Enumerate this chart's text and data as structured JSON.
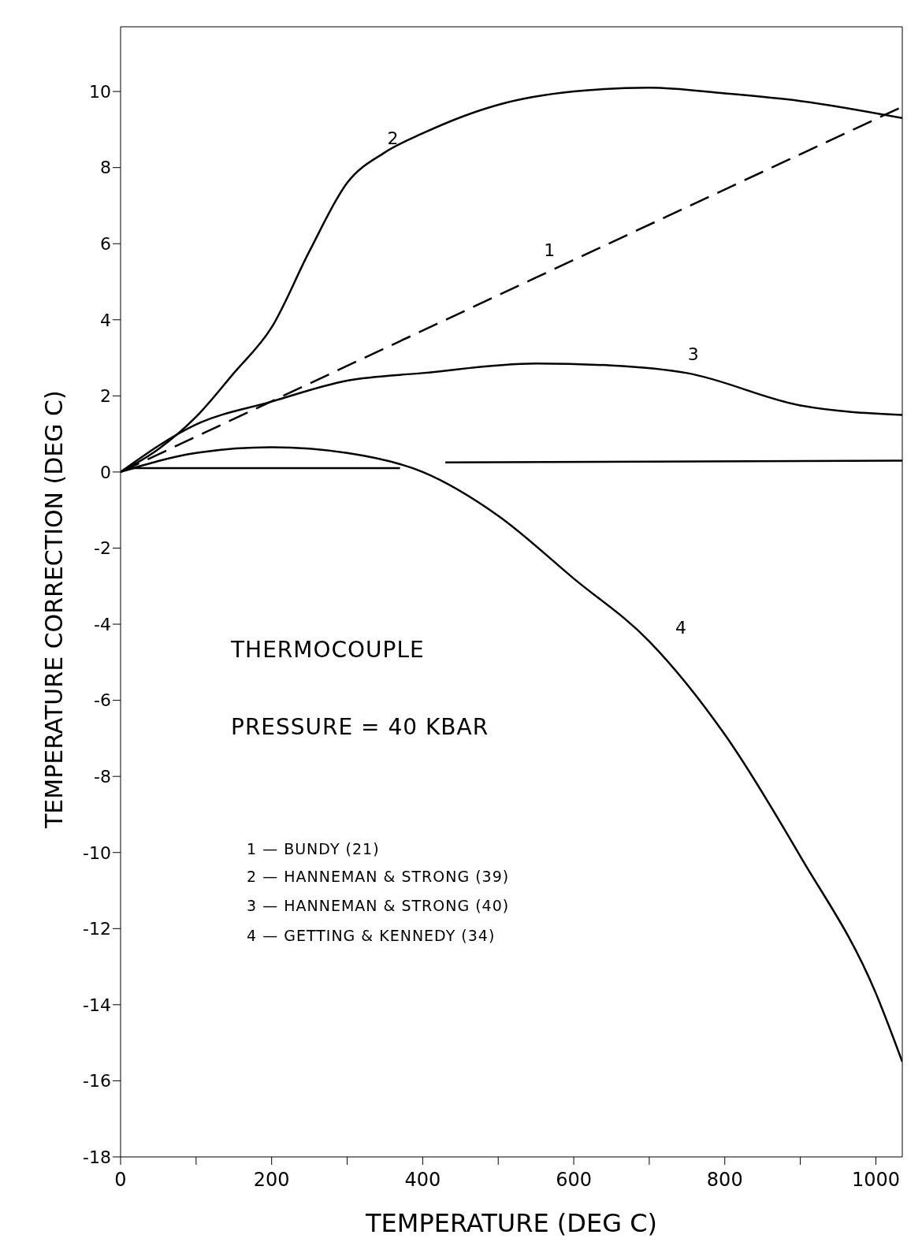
{
  "chart_data": {
    "type": "line",
    "xlabel": "TEMPERATURE (DEG C)",
    "ylabel": "TEMPERATURE   CORRECTION (DEG C)",
    "xlim": [
      0,
      1035
    ],
    "ylim": [
      -18,
      11.7
    ],
    "xticks": [
      0,
      {
        "value": 100,
        "label": null
      },
      200,
      {
        "value": 300,
        "label": null
      },
      400,
      {
        "value": 500,
        "label": null
      },
      600,
      {
        "value": 700,
        "label": null
      },
      800,
      {
        "value": 900,
        "label": null
      },
      1000
    ],
    "yticks": [
      -18,
      -16,
      -14,
      -12,
      -10,
      -8,
      -6,
      -4,
      -2,
      0,
      2,
      4,
      6,
      8,
      10
    ],
    "grid": false,
    "legend": false,
    "marker": "none",
    "series": [
      {
        "name": "1",
        "color": "#000000",
        "line_style": "dashed",
        "x": [
          0,
          549,
          1035
        ],
        "values": [
          0,
          5.1,
          9.6
        ]
      },
      {
        "name": "2",
        "color": "#000000",
        "line_style": "solid",
        "x": [
          0,
          50,
          100,
          150,
          200,
          250,
          300,
          350,
          400,
          500,
          600,
          700,
          800,
          900,
          1035
        ],
        "values": [
          0,
          0.6,
          1.45,
          2.6,
          3.8,
          5.8,
          7.6,
          8.4,
          8.9,
          9.65,
          10.0,
          10.1,
          9.95,
          9.75,
          9.3
        ]
      },
      {
        "name": "3",
        "color": "#000000",
        "line_style": "solid",
        "x": [
          0,
          100,
          200,
          300,
          400,
          550,
          650,
          750,
          900,
          1035
        ],
        "values": [
          0,
          1.25,
          1.85,
          2.4,
          2.6,
          2.85,
          2.8,
          2.6,
          1.75,
          1.5
        ]
      },
      {
        "name": "4",
        "color": "#000000",
        "line_style": "solid",
        "x": [
          0,
          100,
          200,
          300,
          400,
          500,
          600,
          700,
          800,
          900,
          1000,
          1035
        ],
        "values": [
          0,
          0.5,
          0.65,
          0.5,
          0,
          -1.15,
          -2.8,
          -4.45,
          -6.9,
          -10.1,
          -13.7,
          -15.5
        ]
      },
      {
        "color": "#000000",
        "line_style": "solid",
        "x": [
          10,
          370,
          400,
          430,
          1035
        ],
        "values": [
          0.1,
          0.1,
          null,
          0.25,
          0.3
        ]
      }
    ],
    "annotations": [
      "THERMOCOUPLE",
      "PRESSURE = 40 KBAR",
      "1 — BUNDY (21)",
      "2 — HANNEMAN & STRONG (39)",
      "3 — HANNEMAN & STRONG (40)",
      "4 — GETTING & KENNEDY (34)"
    ]
  }
}
